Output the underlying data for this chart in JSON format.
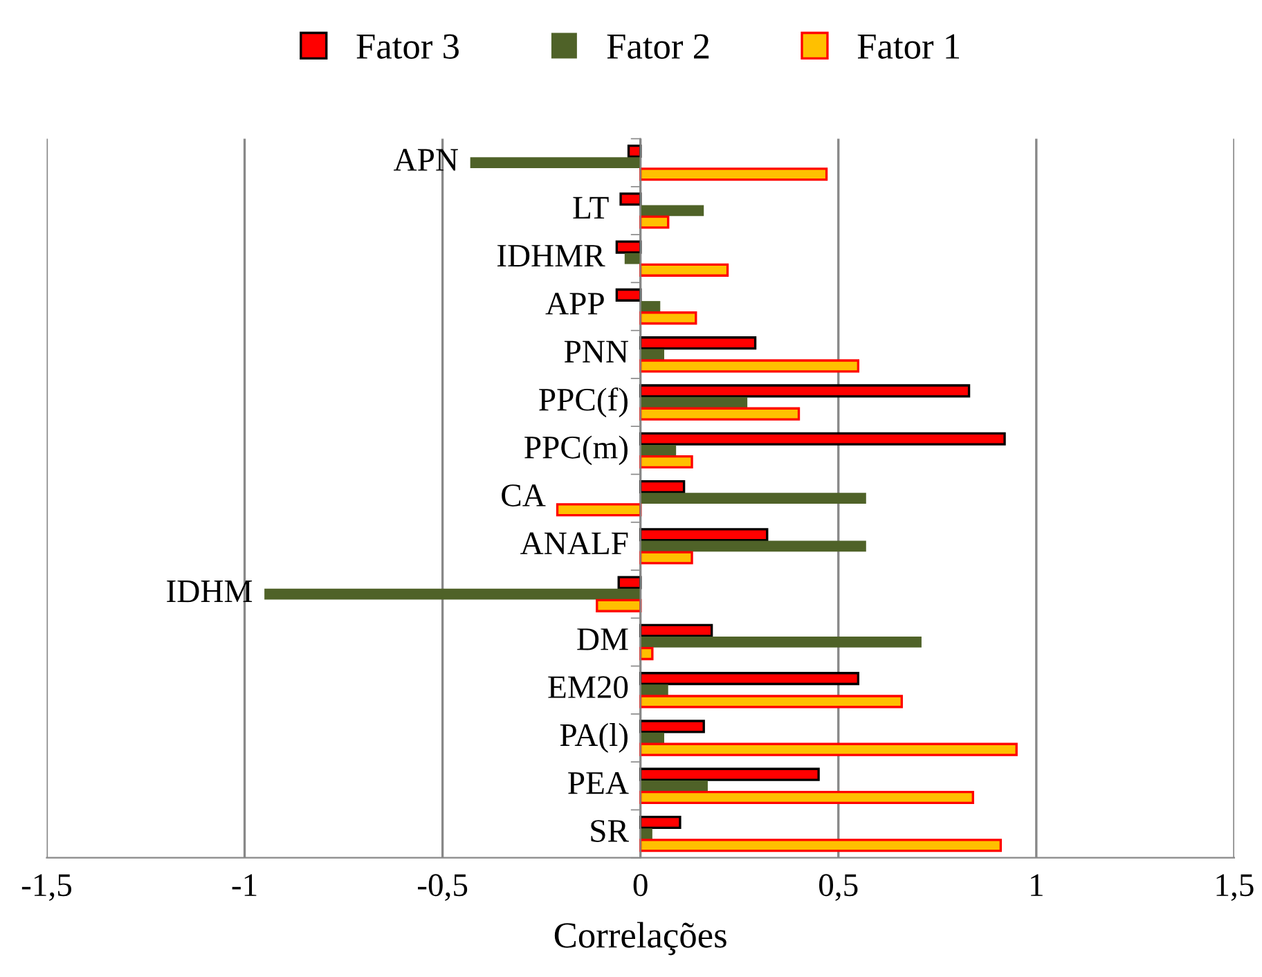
{
  "chart_data": {
    "type": "bar",
    "orientation": "horizontal",
    "xlabel": "Correlações",
    "categories": [
      "APN",
      "LT",
      "IDHMR",
      "APP",
      "PNN",
      "PPC(f)",
      "PPC(m)",
      "CA",
      "ANALF",
      "IDHM",
      "DM",
      "EM20",
      "PA(l)",
      "PEA",
      "SR"
    ],
    "series": [
      {
        "name": "Fator 3",
        "color": "#ff0000",
        "values": [
          -0.03,
          -0.05,
          -0.06,
          -0.06,
          0.29,
          0.83,
          0.92,
          0.11,
          0.32,
          -0.055,
          0.18,
          0.55,
          0.16,
          0.45,
          0.1
        ]
      },
      {
        "name": "Fator 2",
        "color": "#4f6228",
        "values": [
          -0.43,
          0.16,
          -0.04,
          0.05,
          0.06,
          0.27,
          0.09,
          0.57,
          0.57,
          -0.95,
          0.71,
          0.07,
          0.06,
          0.17,
          0.03
        ]
      },
      {
        "name": "Fator 1",
        "color": "#ffc000",
        "values": [
          0.47,
          0.07,
          0.22,
          0.14,
          0.55,
          0.4,
          0.13,
          -0.21,
          0.13,
          -0.11,
          0.03,
          0.66,
          0.95,
          0.84,
          0.91
        ]
      }
    ],
    "xlim": [
      -1.5,
      1.5
    ],
    "xticks": [
      {
        "value": -1.5,
        "label": "-1,5"
      },
      -1,
      {
        "value": -0.5,
        "label": "-0,5"
      },
      0,
      {
        "value": 0.5,
        "label": "0,5"
      },
      1,
      {
        "value": 1.5,
        "label": "1,5"
      }
    ],
    "grid": "x",
    "legend": "top"
  }
}
